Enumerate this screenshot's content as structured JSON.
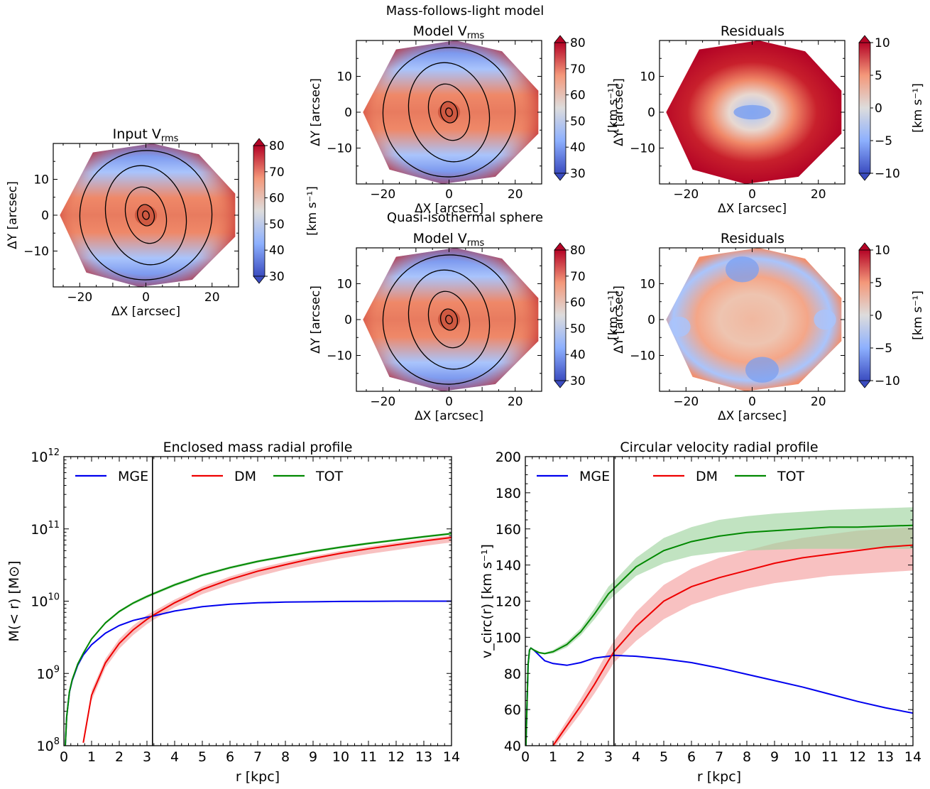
{
  "figure": {
    "section_mfl": "Mass-follows-light model",
    "section_qis": "Quasi-isothermal sphere"
  },
  "maps": [
    {
      "id": "input",
      "title_main": "Input V",
      "title_sub": "rms",
      "kind": "vrms",
      "cbar_ticks": [
        "80",
        "70",
        "60",
        "50",
        "40",
        "30"
      ],
      "cbar_label": "[km s⁻¹]",
      "xlabel": "ΔX [arcsec]",
      "ylabel": "ΔY [arcsec]",
      "xticks": [
        "−20",
        "0",
        "20"
      ],
      "yticks": [
        "10",
        "0",
        "−10"
      ]
    },
    {
      "id": "mfl-model",
      "title_main": "Model V",
      "title_sub": "rms",
      "kind": "vrms",
      "cbar_ticks": [
        "80",
        "70",
        "60",
        "50",
        "40",
        "30"
      ],
      "cbar_label": "[km s⁻¹]",
      "xlabel": "ΔX [arcsec]",
      "ylabel": "ΔY [arcsec]",
      "xticks": [
        "−20",
        "0",
        "20"
      ],
      "yticks": [
        "10",
        "0",
        "−10"
      ]
    },
    {
      "id": "mfl-resid",
      "title_main": "Residuals",
      "title_sub": "",
      "kind": "resid-red",
      "cbar_ticks": [
        "10",
        "5",
        "0",
        "−5",
        "−10"
      ],
      "cbar_label": "[km s⁻¹]",
      "xlabel": "ΔX [arcsec]",
      "ylabel": "ΔY [arcsec]",
      "xticks": [
        "−20",
        "0",
        "20"
      ],
      "yticks": [
        "10",
        "0",
        "−10"
      ]
    },
    {
      "id": "qis-model",
      "title_main": "Model V",
      "title_sub": "rms",
      "kind": "vrms",
      "cbar_ticks": [
        "80",
        "70",
        "60",
        "50",
        "40",
        "30"
      ],
      "cbar_label": "[km s⁻¹]",
      "xlabel": "ΔX [arcsec]",
      "ylabel": "ΔY [arcsec]",
      "xticks": [
        "−20",
        "0",
        "20"
      ],
      "yticks": [
        "10",
        "0",
        "−10"
      ]
    },
    {
      "id": "qis-resid",
      "title_main": "Residuals",
      "title_sub": "",
      "kind": "resid-mixed",
      "cbar_ticks": [
        "10",
        "5",
        "0",
        "−5",
        "−10"
      ],
      "cbar_label": "[km s⁻¹]",
      "xlabel": "ΔX [arcsec]",
      "ylabel": "ΔY [arcsec]",
      "xticks": [
        "−20",
        "0",
        "20"
      ],
      "yticks": [
        "10",
        "0",
        "−10"
      ]
    }
  ],
  "chart_data": [
    {
      "type": "line",
      "title": "Enclosed mass radial profile",
      "xlabel": "r [kpc]",
      "ylabel": "M(< r) [M⊙]",
      "yscale": "log",
      "xlim": [
        0,
        14
      ],
      "ylim": [
        100000000.0,
        1000000000000.0
      ],
      "xticks": [
        "0",
        "1",
        "2",
        "3",
        "4",
        "5",
        "6",
        "7",
        "8",
        "9",
        "10",
        "11",
        "12",
        "13",
        "14"
      ],
      "yticks": [
        {
          "base": "10",
          "exp": "8"
        },
        {
          "base": "10",
          "exp": "9"
        },
        {
          "base": "10",
          "exp": "10"
        },
        {
          "base": "10",
          "exp": "11"
        },
        {
          "base": "10",
          "exp": "12"
        }
      ],
      "vline": 3.2,
      "legend": [
        "MGE",
        "DM",
        "TOT"
      ],
      "legend_position": "top",
      "x": [
        0.05,
        0.1,
        0.2,
        0.3,
        0.5,
        0.7,
        1,
        1.5,
        2,
        2.5,
        3,
        3.2,
        4,
        5,
        6,
        7,
        8,
        9,
        10,
        11,
        12,
        13,
        14
      ],
      "series": [
        {
          "name": "MGE",
          "color": "#0000ee",
          "values": [
            100000000.0,
            250000000.0,
            550000000.0,
            800000000.0,
            1300000000.0,
            1800000000.0,
            2500000000.0,
            3600000000.0,
            4600000000.0,
            5400000000.0,
            6000000000.0,
            6200000000.0,
            7300000000.0,
            8400000000.0,
            9100000000.0,
            9500000000.0,
            9700000000.0,
            9800000000.0,
            9900000000.0,
            9950000000.0,
            10000000000.0,
            10000000000.0,
            10000000000.0
          ]
        },
        {
          "name": "DM",
          "color": "#ee0000",
          "band_color": "#f4a0a0",
          "values": [
            null,
            null,
            null,
            null,
            null,
            110000000.0,
            500000000.0,
            1400000000.0,
            2600000000.0,
            4000000000.0,
            5600000000.0,
            6300000000.0,
            9500000000.0,
            14500000000.0,
            20000000000.0,
            26000000000.0,
            32000000000.0,
            39000000000.0,
            46000000000.0,
            53000000000.0,
            60000000000.0,
            68000000000.0,
            76000000000.0
          ],
          "lower": [
            null,
            null,
            null,
            null,
            null,
            null,
            420000000.0,
            1200000000.0,
            2200000000.0,
            3400000000.0,
            4800000000.0,
            5400000000.0,
            8200000000.0,
            12500000000.0,
            17000000000.0,
            22000000000.0,
            27500000000.0,
            33000000000.0,
            39000000000.0,
            45000000000.0,
            51000000000.0,
            58000000000.0,
            65000000000.0
          ],
          "upper": [
            null,
            null,
            null,
            null,
            null,
            130000000.0,
            580000000.0,
            1600000000.0,
            3000000000.0,
            4600000000.0,
            6400000000.0,
            7100000000.0,
            10500000000.0,
            16000000000.0,
            22000000000.0,
            28500000000.0,
            35000000000.0,
            42000000000.0,
            49500000000.0,
            57000000000.0,
            65000000000.0,
            73000000000.0,
            81000000000.0
          ]
        },
        {
          "name": "TOT",
          "color": "#008800",
          "band_color": "#9fd49f",
          "values": [
            100000000.0,
            250000000.0,
            560000000.0,
            820000000.0,
            1350000000.0,
            1900000000.0,
            3000000000.0,
            5000000000.0,
            7200000000.0,
            9400000000.0,
            11600000000.0,
            12500000000.0,
            16800000000.0,
            22900000000.0,
            29100000000.0,
            35500000000.0,
            41700000000.0,
            48800000000.0,
            55900000000.0,
            63000000000.0,
            70000000000.0,
            78000000000.0,
            86000000000.0
          ],
          "lower": [
            100000000.0,
            250000000.0,
            550000000.0,
            800000000.0,
            1320000000.0,
            1850000000.0,
            2900000000.0,
            4800000000.0,
            6900000000.0,
            9000000000.0,
            11000000000.0,
            11900000000.0,
            16000000000.0,
            21900000000.0,
            27900000000.0,
            34000000000.0,
            40000000000.0,
            46800000000.0,
            53700000000.0,
            60500000000.0,
            67200000000.0,
            75000000000.0,
            82500000000.0
          ],
          "upper": [
            100000000.0,
            260000000.0,
            570000000.0,
            840000000.0,
            1380000000.0,
            1950000000.0,
            3100000000.0,
            5200000000.0,
            7500000000.0,
            9800000000.0,
            12200000000.0,
            13100000000.0,
            17600000000.0,
            23900000000.0,
            30300000000.0,
            37000000000.0,
            43400000000.0,
            50800000000.0,
            58100000000.0,
            65500000000.0,
            72800000000.0,
            81000000000.0,
            89500000000.0
          ]
        }
      ]
    },
    {
      "type": "line",
      "title": "Circular velocity radial profile",
      "xlabel": "r [kpc]",
      "ylabel": "v_circ(r) [km s⁻¹]",
      "xlim": [
        0,
        14
      ],
      "ylim": [
        40,
        200
      ],
      "xticks": [
        "0",
        "1",
        "2",
        "3",
        "4",
        "5",
        "6",
        "7",
        "8",
        "9",
        "10",
        "11",
        "12",
        "13",
        "14"
      ],
      "yticks": [
        "40",
        "60",
        "80",
        "100",
        "120",
        "140",
        "160",
        "180",
        "200"
      ],
      "vline": 3.2,
      "legend": [
        "MGE",
        "DM",
        "TOT"
      ],
      "legend_position": "top",
      "x": [
        0.02,
        0.1,
        0.15,
        0.2,
        0.3,
        0.5,
        0.7,
        1,
        1.5,
        2,
        2.5,
        3,
        3.2,
        4,
        5,
        6,
        7,
        8,
        9,
        10,
        11,
        12,
        13,
        14
      ],
      "series": [
        {
          "name": "MGE",
          "color": "#0000ee",
          "values": [
            40,
            85,
            93,
            94,
            93,
            90,
            87,
            85.5,
            84.5,
            86,
            88.5,
            89.5,
            90,
            89.5,
            88,
            86,
            83,
            79.5,
            76,
            72.5,
            68.5,
            64.5,
            61,
            58
          ]
        },
        {
          "name": "DM",
          "color": "#ee0000",
          "band_color": "#f4a0a0",
          "values": [
            null,
            null,
            null,
            null,
            null,
            null,
            null,
            40,
            51,
            62,
            74,
            87,
            92,
            106,
            120,
            128,
            133,
            137,
            141,
            144,
            146,
            148,
            150,
            151
          ],
          "lower": [
            null,
            null,
            null,
            null,
            null,
            null,
            null,
            38,
            48,
            58,
            69,
            81,
            86,
            98,
            110,
            118,
            123,
            127,
            130,
            132,
            134,
            135,
            136,
            137
          ],
          "upper": [
            null,
            null,
            null,
            null,
            null,
            null,
            null,
            42,
            54,
            66,
            79,
            93,
            98,
            114,
            129,
            138,
            144,
            148,
            152,
            155,
            157,
            159,
            160,
            161
          ]
        },
        {
          "name": "TOT",
          "color": "#008800",
          "band_color": "#9fd49f",
          "values": [
            40,
            85,
            93,
            94,
            93,
            91.5,
            91,
            92,
            96,
            103,
            113,
            124,
            127,
            139,
            148,
            153,
            156,
            158,
            159,
            160,
            161,
            161,
            161.5,
            162
          ],
          "lower": [
            40,
            85,
            93,
            93.5,
            92.5,
            91,
            90.5,
            91,
            94.5,
            101,
            110,
            120,
            123,
            134,
            141,
            145,
            147,
            148,
            148.5,
            149,
            149,
            149,
            149,
            149
          ],
          "upper": [
            40,
            85,
            93,
            94.5,
            93.5,
            92,
            91.5,
            93,
            97.5,
            105,
            116,
            128,
            131,
            144,
            155,
            161,
            165,
            167,
            168.5,
            169.5,
            170.5,
            171,
            171.5,
            172
          ]
        }
      ]
    }
  ]
}
